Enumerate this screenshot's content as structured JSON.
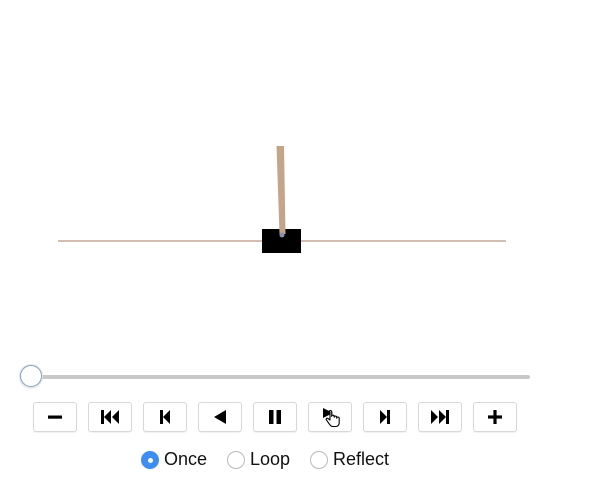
{
  "animation": {
    "cart_color": "#000000",
    "pole_color": "#c5a58a",
    "track_color": "#c4a796"
  },
  "slider": {
    "value": 0,
    "min": 0,
    "max": 1
  },
  "controls": [
    {
      "name": "slower-button",
      "icon": "minus-icon",
      "label": "slower"
    },
    {
      "name": "first-frame-button",
      "icon": "skip-to-start-icon",
      "label": "first frame"
    },
    {
      "name": "previous-frame-button",
      "icon": "step-back-icon",
      "label": "previous frame"
    },
    {
      "name": "play-reverse-button",
      "icon": "play-reverse-icon",
      "label": "play reverse"
    },
    {
      "name": "pause-button",
      "icon": "pause-icon",
      "label": "pause"
    },
    {
      "name": "play-button",
      "icon": "play-icon",
      "label": "play"
    },
    {
      "name": "next-frame-button",
      "icon": "step-forward-icon",
      "label": "next frame"
    },
    {
      "name": "last-frame-button",
      "icon": "skip-to-end-icon",
      "label": "last frame"
    },
    {
      "name": "faster-button",
      "icon": "plus-icon",
      "label": "faster"
    }
  ],
  "modes": {
    "selected": "Once",
    "options": [
      "Once",
      "Loop",
      "Reflect"
    ]
  }
}
